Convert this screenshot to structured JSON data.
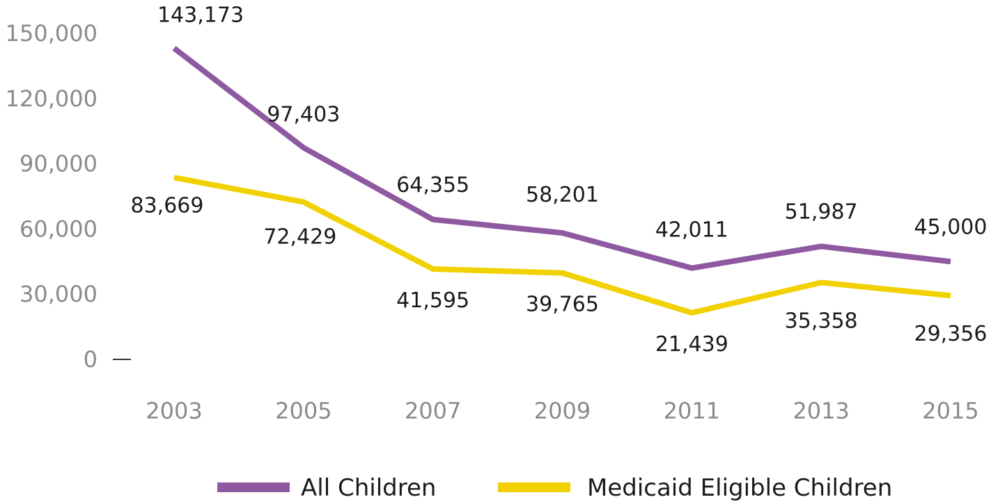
{
  "chart_data": {
    "type": "line",
    "title": "",
    "xlabel": "",
    "ylabel": "",
    "x": [
      "2003",
      "2005",
      "2007",
      "2009",
      "2011",
      "2013",
      "2015"
    ],
    "ylim": [
      0,
      150000
    ],
    "yticks": [
      0,
      30000,
      60000,
      90000,
      120000,
      150000
    ],
    "ytick_labels": [
      "0",
      "30,000",
      "60,000",
      "90,000",
      "120,000",
      "150,000"
    ],
    "grid": false,
    "legend_position": "bottom",
    "series": [
      {
        "name": "All Children",
        "color": "#8e59a0",
        "values": [
          143173,
          97403,
          64355,
          58201,
          42011,
          51987,
          45000
        ],
        "labels": [
          "143,173",
          "97,403",
          "64,355",
          "58,201",
          "42,011",
          "51,987",
          "45,000"
        ]
      },
      {
        "name": "Medicaid Eligible Children",
        "color": "#f2d100",
        "values": [
          83669,
          72429,
          41595,
          39765,
          21439,
          35358,
          29356
        ],
        "labels": [
          "83,669",
          "72,429",
          "41,595",
          "39,765",
          "21,439",
          "35,358",
          "29,356"
        ]
      }
    ]
  }
}
